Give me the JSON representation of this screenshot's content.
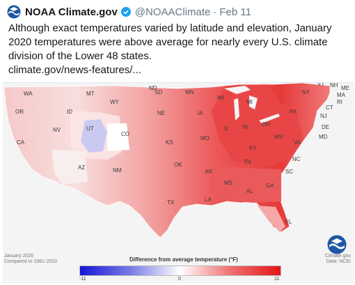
{
  "tweet": {
    "author": "NOAA Climate.gov",
    "handle": "@NOAAClimate",
    "separator": "·",
    "date": "Feb 11",
    "text": "Although exact temperatures varied by latitude and elevation, January 2020 temperatures were above average for nearly every U.S. climate division of the Lower 48 states.",
    "link": "climate.gov/news-features/..."
  },
  "map": {
    "caption_line1": "January 2020",
    "caption_line2": "Compared to 1981-2010",
    "credit_line1": "Climate.gov",
    "credit_line2": "Data: NCEI",
    "legend_title": "Difference from average temperature (°F)",
    "legend_min": "-11",
    "legend_mid": "0",
    "legend_max": "11",
    "state_labels": [
      "WA",
      "MT",
      "ND",
      "MN",
      "VT",
      "NH",
      "ME",
      "MA",
      "RI",
      "CT",
      "NY",
      "SD",
      "WI",
      "MI",
      "OR",
      "ID",
      "WY",
      "NE",
      "IA",
      "PA",
      "NJ",
      "DE",
      "MD",
      "CA",
      "NV",
      "UT",
      "CO",
      "KS",
      "MO",
      "IL",
      "IN",
      "OH",
      "WV",
      "VA",
      "KY",
      "TN",
      "NC",
      "AZ",
      "NM",
      "OK",
      "AR",
      "SC",
      "MS",
      "AL",
      "GA",
      "TX",
      "LA",
      "FL"
    ],
    "colors": {
      "cold": "#1515d6",
      "neutral": "#ffffff",
      "warm": "#e31515"
    }
  },
  "icons": {
    "avatar": "noaa-logo-icon",
    "verified": "verified-badge-icon",
    "badge": "noaa-badge-icon"
  }
}
